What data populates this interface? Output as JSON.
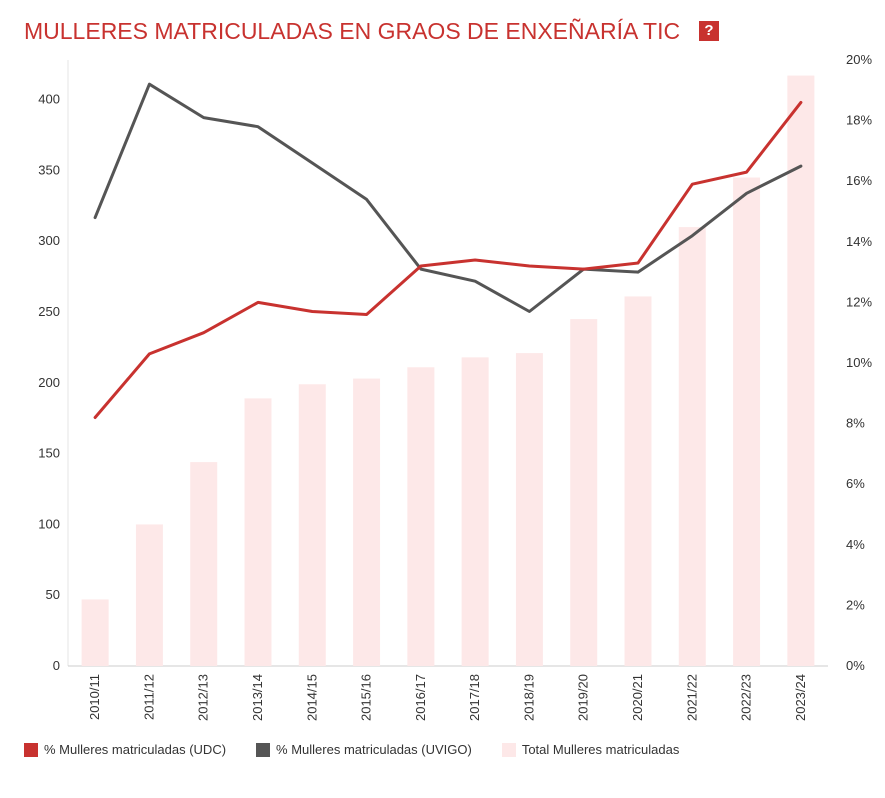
{
  "header": {
    "title": "MULLERES MATRICULADAS EN GRAOS DE ENXEÑARÍA TIC",
    "help_label": "?"
  },
  "colors": {
    "udc": "#c8322f",
    "uvigo": "#555555",
    "total": "#fde8e8",
    "accent": "#c8322f"
  },
  "chart_data": {
    "type": "bar",
    "categories": [
      "2010/11",
      "2011/12",
      "2012/13",
      "2013/14",
      "2014/15",
      "2015/16",
      "2016/17",
      "2017/18",
      "2018/19",
      "2019/20",
      "2020/21",
      "2021/22",
      "2022/23",
      "2023/24"
    ],
    "y_left": {
      "ticks": [
        0,
        50,
        100,
        150,
        200,
        250,
        300,
        350,
        400
      ],
      "range": [
        0,
        428
      ]
    },
    "y_right": {
      "ticks": [
        "0%",
        "2%",
        "4%",
        "6%",
        "8%",
        "10%",
        "12%",
        "14%",
        "16%",
        "18%",
        "20%"
      ],
      "range": [
        0,
        20
      ]
    },
    "series": [
      {
        "name": "% Mulleres matriculadas (UDC)",
        "type": "line",
        "axis": "right",
        "values": [
          8.2,
          10.3,
          11.0,
          12.0,
          11.7,
          11.6,
          13.2,
          13.4,
          13.2,
          13.1,
          13.3,
          15.9,
          16.3,
          18.6
        ]
      },
      {
        "name": "% Mulleres matriculadas (UVIGO)",
        "type": "line",
        "axis": "right",
        "values": [
          14.8,
          19.2,
          18.1,
          17.8,
          16.6,
          15.4,
          13.1,
          12.7,
          11.7,
          13.1,
          13.0,
          14.2,
          15.6,
          16.5
        ]
      },
      {
        "name": "Total Mulleres matriculadas",
        "type": "bar",
        "axis": "left",
        "values": [
          47,
          100,
          144,
          189,
          199,
          203,
          211,
          218,
          221,
          245,
          261,
          310,
          345,
          417
        ]
      }
    ],
    "legend": "bottom-left",
    "grid": false
  }
}
